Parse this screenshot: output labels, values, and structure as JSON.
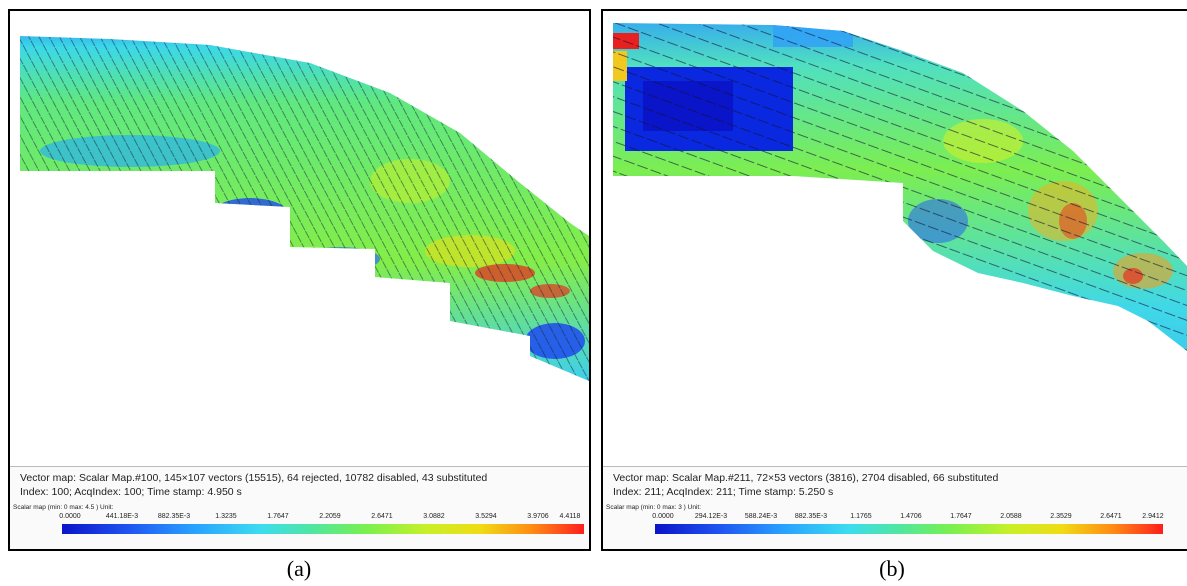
{
  "panels": [
    {
      "vector_info": "Vector map: Scalar Map.#100, 145×107 vectors (15515), 64 rejected, 10782 disabled, 43 substituted",
      "index_info": "Index: 100; AcqIndex: 100; Time stamp: 4.950 s",
      "scale_label": "Scalar map (min: 0 max: 4.5 ) Unit:",
      "ticks": [
        "0.0000",
        "441.18E-3",
        "882.35E-3",
        "1.3235",
        "1.7647",
        "2.2059",
        "2.6471",
        "3.0882",
        "3.5294",
        "3.9706",
        "4.4118"
      ],
      "caption": "(a)"
    },
    {
      "vector_info": "Vector map: Scalar Map.#211, 72×53 vectors (3816), 2704 disabled, 66 substituted",
      "index_info": "Index: 211; AcqIndex: 211; Time stamp: 5.250 s",
      "scale_label": "Scalar map (min: 0 max: 3 ) Unit:",
      "ticks": [
        "0.0000",
        "294.12E-3",
        "588.24E-3",
        "882.35E-3",
        "1.1765",
        "1.4706",
        "1.7647",
        "2.0588",
        "2.3529",
        "2.6471",
        "2.9412"
      ],
      "caption": "(b)"
    }
  ],
  "colors": {
    "low": "#0a14c8",
    "mid_low": "#28a0ff",
    "mid": "#78f050",
    "mid_high": "#f0dc14",
    "high": "#ff1e1e"
  }
}
